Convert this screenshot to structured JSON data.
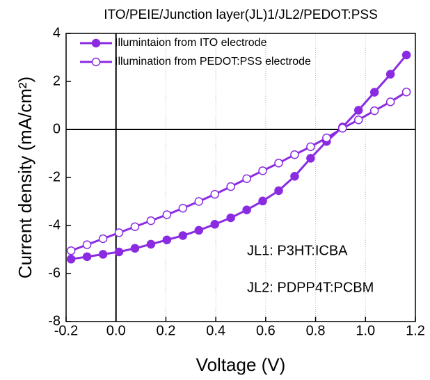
{
  "chart_data": {
    "type": "line",
    "title": "ITO/PEIE/Junction layer(JL)1/JL2/PEDOT:PSS",
    "xlabel": "Voltage (V)",
    "ylabel": "Current density (mA/cm²)",
    "annotations": [
      "JL1: P3HT:ICBA",
      "JL2: PDPP4T:PCBM"
    ],
    "x": [
      -0.18,
      -0.116,
      -0.052,
      0.012,
      0.076,
      0.14,
      0.204,
      0.268,
      0.332,
      0.396,
      0.46,
      0.524,
      0.588,
      0.652,
      0.716,
      0.78,
      0.844,
      0.908,
      0.972,
      1.036,
      1.1,
      1.164
    ],
    "series": [
      {
        "name": "Illumintaion from ITO electrode",
        "color": "#8a2be2",
        "marker": "filled",
        "values": [
          -5.4,
          -5.3,
          -5.2,
          -5.1,
          -4.95,
          -4.78,
          -4.6,
          -4.42,
          -4.2,
          -3.95,
          -3.68,
          -3.35,
          -2.98,
          -2.55,
          -1.95,
          -1.2,
          -0.5,
          0.1,
          0.8,
          1.55,
          2.3,
          3.1
        ]
      },
      {
        "name": "Illumination from PEDOT:PSS electrode",
        "color": "#8a2be2",
        "marker": "open",
        "values": [
          -5.05,
          -4.8,
          -4.55,
          -4.3,
          -4.05,
          -3.8,
          -3.55,
          -3.28,
          -3.0,
          -2.7,
          -2.38,
          -2.05,
          -1.72,
          -1.4,
          -1.05,
          -0.72,
          -0.35,
          0.05,
          0.4,
          0.78,
          1.15,
          1.56
        ]
      }
    ],
    "xlim": [
      -0.2,
      1.2
    ],
    "xticks": [
      -0.2,
      {
        "value": 0,
        "label": "0.0"
      },
      0.2,
      0.4,
      0.6,
      0.8,
      {
        "value": 1,
        "label": "1.0"
      },
      1.2
    ],
    "ylim": [
      -8,
      4
    ],
    "yticks": [
      -8,
      -6,
      -4,
      -2,
      0,
      2,
      4
    ],
    "grid": true,
    "legend": "top-left"
  }
}
